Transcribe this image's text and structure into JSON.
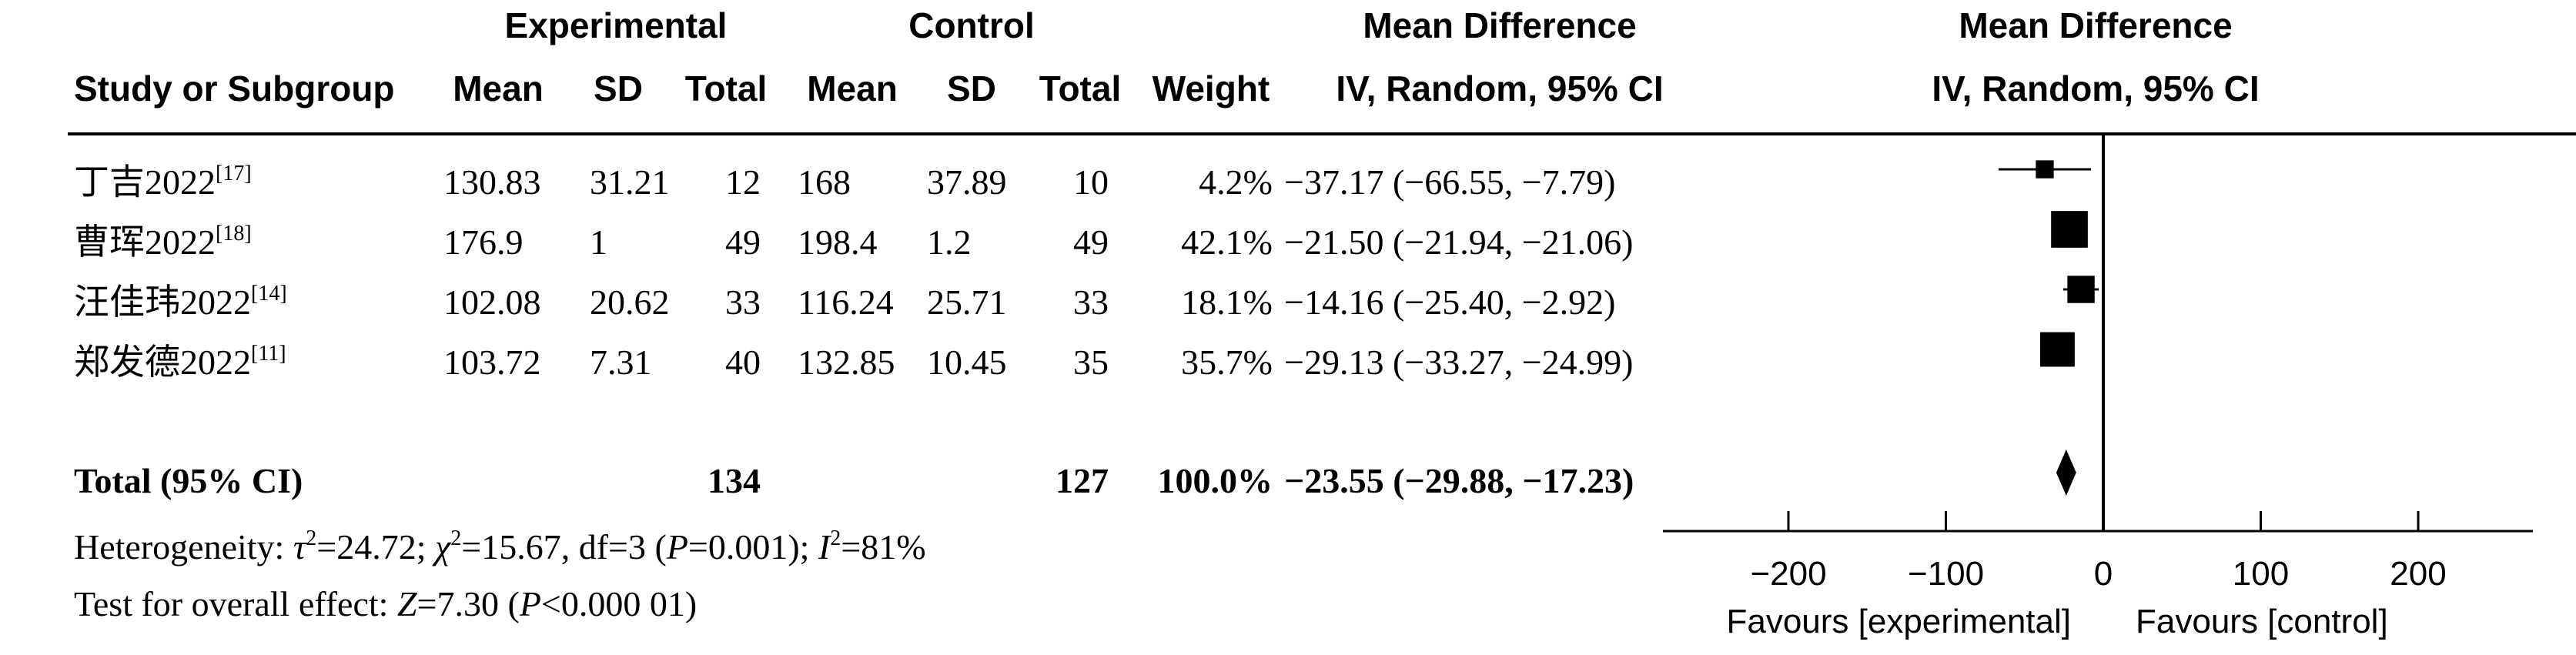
{
  "header": {
    "group_experimental": "Experimental",
    "group_control": "Control",
    "study_col": "Study or Subgroup",
    "exp_mean": "Mean",
    "exp_sd": "SD",
    "exp_total": "Total",
    "ctl_mean": "Mean",
    "ctl_sd": "SD",
    "ctl_total": "Total",
    "weight": "Weight",
    "md_title": "Mean Difference",
    "md_method": "IV, Random, 95% CI",
    "plot_title": "Mean Difference",
    "plot_method": "IV, Random, 95% CI"
  },
  "studies": [
    {
      "name": "丁吉2022",
      "ref": "[17]",
      "exp_mean": "130.83",
      "exp_sd": "31.21",
      "exp_total": "12",
      "ctl_mean": "168",
      "ctl_sd": "37.89",
      "ctl_total": "10",
      "weight": "4.2%",
      "ci_text": "−37.17 (−66.55, −7.79)"
    },
    {
      "name": "曹珲2022",
      "ref": "[18]",
      "exp_mean": "176.9",
      "exp_sd": "1",
      "exp_total": "49",
      "ctl_mean": "198.4",
      "ctl_sd": "1.2",
      "ctl_total": "49",
      "weight": "42.1%",
      "ci_text": "−21.50 (−21.94, −21.06)"
    },
    {
      "name": "汪佳玮2022",
      "ref": "[14]",
      "exp_mean": "102.08",
      "exp_sd": "20.62",
      "exp_total": "33",
      "ctl_mean": "116.24",
      "ctl_sd": "25.71",
      "ctl_total": "33",
      "weight": "18.1%",
      "ci_text": "−14.16 (−25.40, −2.92)"
    },
    {
      "name": "郑发德2022",
      "ref": "[11]",
      "exp_mean": "103.72",
      "exp_sd": "7.31",
      "exp_total": "40",
      "ctl_mean": "132.85",
      "ctl_sd": "10.45",
      "ctl_total": "35",
      "weight": "35.7%",
      "ci_text": "−29.13 (−33.27, −24.99)"
    }
  ],
  "total": {
    "label": "Total (95% CI)",
    "exp_total": "134",
    "ctl_total": "127",
    "weight": "100.0%",
    "ci_text": "−23.55 (−29.88, −17.23)"
  },
  "footer": {
    "het_prefix": "Heterogeneity: ",
    "tau": "τ",
    "tau_val": "=24.72; ",
    "chi": "χ",
    "chi_val": "=15.67, df=3 (",
    "p1": "P",
    "p1_val": "=0.001); ",
    "i": "I",
    "i_val": "=81%",
    "sup2": "2",
    "overall_prefix": "Test for overall effect: ",
    "z": "Z",
    "z_val": "=7.30 (",
    "p2": "P",
    "p2_val": "<0.000 01)"
  },
  "chart_data": {
    "type": "scatter",
    "subtype": "forest-plot",
    "xlim": [
      -200,
      200
    ],
    "ticks": [
      -200,
      -100,
      0,
      100,
      200
    ],
    "tick_labels": [
      "−200",
      "−100",
      "0",
      "100",
      "200"
    ],
    "xlabel_left": "Favours [experimental]",
    "xlabel_right": "Favours [control]",
    "studies": [
      {
        "name": "丁吉2022",
        "md": -37.17,
        "lower": -66.55,
        "upper": -7.79,
        "weight": 4.2
      },
      {
        "name": "曹珲2022",
        "md": -21.5,
        "lower": -21.94,
        "upper": -21.06,
        "weight": 42.1
      },
      {
        "name": "汪佳玮2022",
        "md": -14.16,
        "lower": -25.4,
        "upper": -2.92,
        "weight": 18.1
      },
      {
        "name": "郑发德2022",
        "md": -29.13,
        "lower": -33.27,
        "upper": -24.99,
        "weight": 35.7
      }
    ],
    "pooled": {
      "md": -23.55,
      "lower": -29.88,
      "upper": -17.23
    }
  }
}
